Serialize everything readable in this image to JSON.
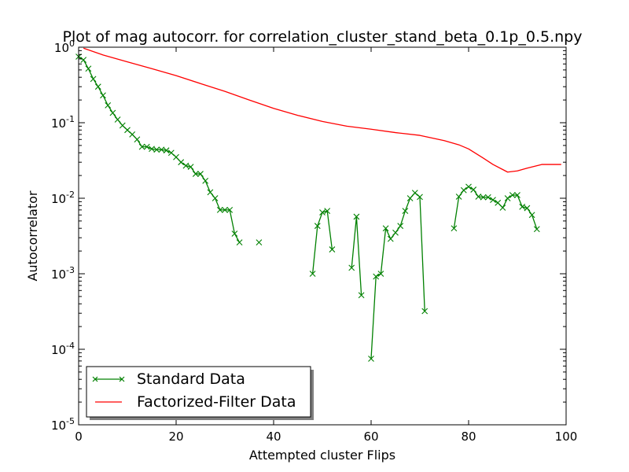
{
  "chart_data": {
    "type": "line",
    "title": "Plot of mag autocorr. for correlation_cluster_stand_beta_0.1p_0.5.npy",
    "xlabel": "Attempted cluster Flips",
    "ylabel": "Autocorrelator",
    "xlim": [
      0,
      100
    ],
    "ylim": [
      1e-05,
      1
    ],
    "yscale": "log",
    "x_ticks": [
      0,
      20,
      40,
      60,
      80,
      100
    ],
    "y_ticks": [
      {
        "base": "10",
        "exp": "0",
        "value": 1
      },
      {
        "base": "10",
        "exp": "-1",
        "value": 0.1
      },
      {
        "base": "10",
        "exp": "-2",
        "value": 0.01
      },
      {
        "base": "10",
        "exp": "-3",
        "value": 0.001
      },
      {
        "base": "10",
        "exp": "-4",
        "value": 0.0001
      },
      {
        "base": "10",
        "exp": "-5",
        "value": 1e-05
      }
    ],
    "grid": false,
    "legend_position": "lower-left",
    "series": [
      {
        "name": "Standard Data",
        "color": "#008000",
        "marker": "x",
        "points": [
          [
            0,
            0.75
          ],
          [
            1,
            0.68
          ],
          [
            2,
            0.52
          ],
          [
            3,
            0.38
          ],
          [
            4,
            0.3
          ],
          [
            5,
            0.23
          ],
          [
            6,
            0.17
          ],
          [
            7,
            0.135
          ],
          [
            8,
            0.11
          ],
          [
            9,
            0.092
          ],
          [
            10,
            0.08
          ],
          [
            11,
            0.07
          ],
          [
            12,
            0.06
          ],
          [
            13,
            0.048
          ],
          [
            14,
            0.048
          ],
          [
            15,
            0.045
          ],
          [
            16,
            0.044
          ],
          [
            17,
            0.044
          ],
          [
            18,
            0.043
          ],
          [
            19,
            0.04
          ],
          [
            20,
            0.035
          ],
          [
            21,
            0.03
          ],
          [
            22,
            0.027
          ],
          [
            23,
            0.026
          ],
          [
            24,
            0.021
          ],
          [
            25,
            0.021
          ],
          [
            26,
            0.017
          ],
          [
            27,
            0.012
          ],
          [
            28,
            0.01
          ],
          [
            29,
            0.007
          ],
          [
            30,
            0.007
          ],
          [
            31,
            0.007
          ],
          [
            32,
            0.0034
          ],
          [
            33,
            0.0026
          ],
          null,
          [
            37,
            0.0026
          ],
          null,
          [
            48,
            0.001
          ],
          [
            49,
            0.0043
          ],
          [
            50,
            0.0065
          ],
          [
            51,
            0.0068
          ],
          [
            52,
            0.0021
          ],
          null,
          [
            56,
            0.0012
          ],
          [
            57,
            0.0057
          ],
          [
            58,
            0.00052
          ],
          null,
          [
            60,
            7.5e-05
          ],
          [
            61,
            0.00092
          ],
          [
            62,
            0.001
          ],
          [
            63,
            0.004
          ],
          [
            64,
            0.0029
          ],
          [
            65,
            0.0035
          ],
          [
            66,
            0.0043
          ],
          [
            67,
            0.0068
          ],
          [
            68,
            0.01
          ],
          [
            69,
            0.0118
          ],
          [
            70,
            0.0104
          ],
          [
            71,
            0.00032
          ],
          null,
          [
            77,
            0.004
          ],
          [
            78,
            0.0105
          ],
          [
            79,
            0.0128
          ],
          [
            80,
            0.0142
          ],
          [
            81,
            0.013
          ],
          [
            82,
            0.0105
          ],
          [
            83,
            0.0103
          ],
          [
            84,
            0.0103
          ],
          [
            85,
            0.0095
          ],
          [
            86,
            0.0087
          ],
          [
            87,
            0.0075
          ],
          [
            88,
            0.01
          ],
          [
            89,
            0.011
          ],
          [
            90,
            0.011
          ],
          [
            91,
            0.0077
          ],
          [
            92,
            0.0074
          ],
          [
            93,
            0.006
          ],
          [
            94,
            0.0039
          ]
        ]
      },
      {
        "name": "Factorized-Filter Data",
        "color": "#ff0000",
        "marker": "none",
        "points": [
          [
            1,
            0.97
          ],
          [
            5,
            0.79
          ],
          [
            10,
            0.64
          ],
          [
            15,
            0.52
          ],
          [
            20,
            0.42
          ],
          [
            25,
            0.33
          ],
          [
            30,
            0.26
          ],
          [
            35,
            0.2
          ],
          [
            40,
            0.155
          ],
          [
            45,
            0.125
          ],
          [
            50,
            0.104
          ],
          [
            55,
            0.09
          ],
          [
            60,
            0.082
          ],
          [
            65,
            0.074
          ],
          [
            70,
            0.068
          ],
          [
            75,
            0.058
          ],
          [
            78,
            0.051
          ],
          [
            80,
            0.045
          ],
          [
            83,
            0.034
          ],
          [
            85,
            0.028
          ],
          [
            87,
            0.024
          ],
          [
            88,
            0.0222
          ],
          [
            90,
            0.023
          ],
          [
            92,
            0.025
          ],
          [
            95,
            0.028
          ],
          [
            99,
            0.028
          ]
        ]
      }
    ]
  }
}
